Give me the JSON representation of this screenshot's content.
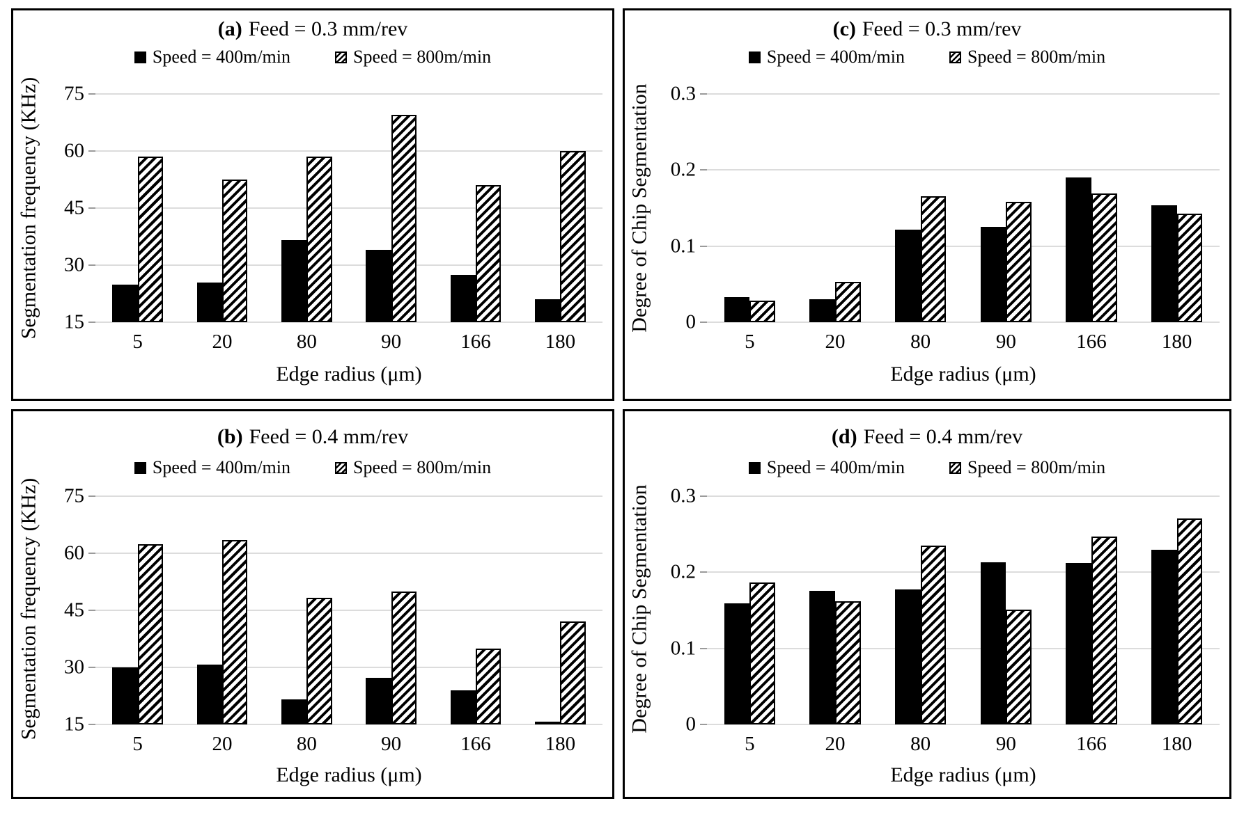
{
  "colors": {
    "bar_fill": "#000000",
    "hatch_foreground": "#000000",
    "hatch_background": "#ffffff",
    "gridline": "#dcdcdc",
    "panel_border": "#000000",
    "text": "#000000"
  },
  "chart_data": [
    {
      "id": "a",
      "type": "bar",
      "title_prefix": "(a)",
      "title": "Feed = 0.3 mm/rev",
      "xlabel": "Edge radius (μm)",
      "ylabel": "Segmentation frequency (KHz)",
      "categories": [
        "5",
        "20",
        "80",
        "90",
        "166",
        "180"
      ],
      "series": [
        {
          "name": "Speed = 400m/min",
          "pattern": "solid",
          "values": [
            24.8,
            25.4,
            36.5,
            34.0,
            27.5,
            21.0
          ]
        },
        {
          "name": "Speed = 800m/min",
          "pattern": "hatch",
          "values": [
            58.5,
            52.5,
            58.5,
            69.5,
            51.0,
            60.0
          ]
        }
      ],
      "ylim": [
        15,
        75
      ],
      "yticks": [
        75,
        60,
        45,
        30,
        15
      ],
      "grid": true,
      "legend_position": "top"
    },
    {
      "id": "c",
      "type": "bar",
      "title_prefix": "(c)",
      "title": "Feed = 0.3 mm/rev",
      "xlabel": "Edge radius (μm)",
      "ylabel": "Degree of Chip Segmentation",
      "categories": [
        "5",
        "20",
        "80",
        "90",
        "166",
        "180"
      ],
      "series": [
        {
          "name": "Speed = 400m/min",
          "pattern": "solid",
          "values": [
            0.033,
            0.03,
            0.122,
            0.125,
            0.19,
            0.154
          ]
        },
        {
          "name": "Speed = 800m/min",
          "pattern": "hatch",
          "values": [
            0.028,
            0.053,
            0.166,
            0.158,
            0.169,
            0.143
          ]
        }
      ],
      "ylim": [
        0,
        0.3
      ],
      "yticks": [
        0.3,
        0.2,
        0.1,
        0
      ],
      "grid": true,
      "legend_position": "top"
    },
    {
      "id": "b",
      "type": "bar",
      "title_prefix": "(b)",
      "title": "Feed = 0.4 mm/rev",
      "xlabel": "Edge radius (μm)",
      "ylabel": "Segmentation frequency (KHz)",
      "categories": [
        "5",
        "20",
        "80",
        "90",
        "166",
        "180"
      ],
      "series": [
        {
          "name": "Speed = 400m/min",
          "pattern": "solid",
          "values": [
            30.0,
            30.7,
            21.6,
            27.2,
            24.0,
            15.7
          ]
        },
        {
          "name": "Speed = 800m/min",
          "pattern": "hatch",
          "values": [
            62.4,
            63.5,
            48.3,
            50.0,
            35.0,
            42.0
          ]
        }
      ],
      "ylim": [
        15,
        75
      ],
      "yticks": [
        75,
        60,
        45,
        30,
        15
      ],
      "grid": true,
      "legend_position": "top"
    },
    {
      "id": "d",
      "type": "bar",
      "title_prefix": "(d)",
      "title": "Feed = 0.4 mm/rev",
      "xlabel": "Edge radius (μm)",
      "ylabel": "Degree of Chip Segmentation",
      "categories": [
        "5",
        "20",
        "80",
        "90",
        "166",
        "180"
      ],
      "series": [
        {
          "name": "Speed = 400m/min",
          "pattern": "solid",
          "values": [
            0.159,
            0.176,
            0.177,
            0.213,
            0.212,
            0.23
          ]
        },
        {
          "name": "Speed = 800m/min",
          "pattern": "hatch",
          "values": [
            0.187,
            0.162,
            0.235,
            0.151,
            0.247,
            0.271
          ]
        }
      ],
      "ylim": [
        0,
        0.3
      ],
      "yticks": [
        0.3,
        0.2,
        0.1,
        0
      ],
      "grid": true,
      "legend_position": "top"
    }
  ]
}
